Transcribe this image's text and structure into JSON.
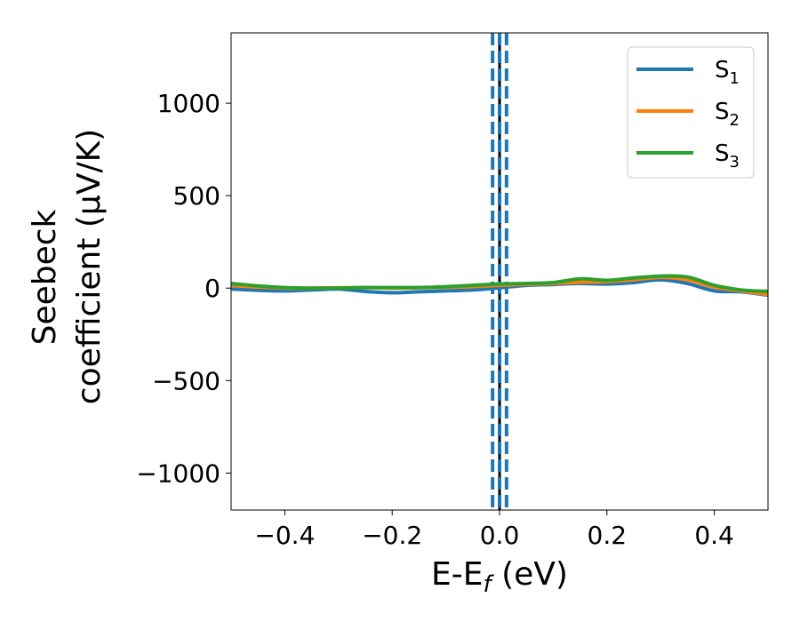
{
  "chart_data": {
    "type": "line",
    "title": "",
    "xlabel": {
      "main": "E-E",
      "sub": "f",
      "unit": " (eV)"
    },
    "ylabel": {
      "line1": "Seebeck",
      "line2": "coefficient  (μV/K)"
    },
    "xlim": [
      -0.5,
      0.5
    ],
    "ylim": [
      -1200,
      1380
    ],
    "xticks": [
      -0.4,
      -0.2,
      0.0,
      0.2,
      0.4
    ],
    "xtick_labels": [
      "−0.4",
      "−0.2",
      "0.0",
      "0.2",
      "0.4"
    ],
    "yticks": [
      -1000,
      -500,
      0,
      500,
      1000
    ],
    "ytick_labels": [
      "−1000",
      "−500",
      "0",
      "500",
      "1000"
    ],
    "grid": false,
    "legend_position": "top-right",
    "vertical_lines": [
      {
        "x": 0.0,
        "style": "solid",
        "color": "#000000"
      },
      {
        "x": -0.013,
        "style": "dashed",
        "color": "#1f77b4"
      },
      {
        "x": 0.0,
        "style": "dashed",
        "color": "#1f77b4"
      },
      {
        "x": 0.013,
        "style": "dashed",
        "color": "#1f77b4"
      }
    ],
    "series": [
      {
        "name": "S",
        "sub": "1",
        "color": "#1f77b4",
        "x": [
          -0.5,
          -0.45,
          -0.4,
          -0.35,
          -0.3,
          -0.25,
          -0.2,
          -0.15,
          -0.1,
          -0.05,
          0.0,
          0.05,
          0.1,
          0.15,
          0.2,
          0.25,
          0.3,
          0.35,
          0.4,
          0.45,
          0.5
        ],
        "y": [
          -5,
          -12,
          -15,
          -10,
          -5,
          -18,
          -25,
          -20,
          -15,
          -10,
          2,
          15,
          20,
          25,
          22,
          30,
          45,
          25,
          -15,
          -20,
          -38
        ]
      },
      {
        "name": "S",
        "sub": "2",
        "color": "#ff7f0e",
        "x": [
          -0.5,
          -0.45,
          -0.4,
          -0.35,
          -0.3,
          -0.25,
          -0.2,
          -0.15,
          -0.1,
          -0.05,
          0.0,
          0.05,
          0.1,
          0.15,
          0.2,
          0.25,
          0.3,
          0.35,
          0.4,
          0.45,
          0.5
        ],
        "y": [
          15,
          5,
          0,
          0,
          2,
          3,
          0,
          2,
          5,
          8,
          15,
          20,
          25,
          32,
          35,
          45,
          58,
          45,
          5,
          -15,
          -35
        ]
      },
      {
        "name": "S",
        "sub": "3",
        "color": "#2ca02c",
        "x": [
          -0.5,
          -0.45,
          -0.4,
          -0.35,
          -0.3,
          -0.25,
          -0.2,
          -0.15,
          -0.1,
          -0.05,
          0.0,
          0.05,
          0.1,
          0.15,
          0.2,
          0.25,
          0.3,
          0.35,
          0.4,
          0.45,
          0.5
        ],
        "y": [
          25,
          12,
          3,
          0,
          0,
          3,
          3,
          3,
          8,
          15,
          22,
          25,
          30,
          50,
          42,
          55,
          65,
          60,
          15,
          -10,
          -18
        ]
      }
    ]
  }
}
